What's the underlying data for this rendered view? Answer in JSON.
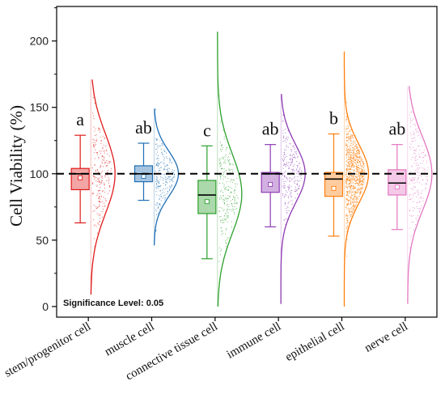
{
  "chart_data": {
    "type": "box-violin",
    "ylabel": "Cell Viability (%)",
    "ylim": [
      -8,
      226
    ],
    "yticks": [
      0,
      50,
      100,
      150,
      200
    ],
    "reference_line": 100,
    "annotation": "Significance Level: 0.05",
    "categories": [
      {
        "label": "stem/progenitor cell",
        "color": "#e01b1b",
        "letter": "a",
        "whisker_low": 63,
        "q1": 88,
        "median": 100,
        "mean": 97,
        "q3": 104,
        "whisker_high": 129,
        "data_min": 9,
        "data_max": 171,
        "density_peak": 100,
        "density_sd": 30
      },
      {
        "label": "muscle cell",
        "color": "#1f6fb5",
        "letter": "ab",
        "whisker_low": 80,
        "q1": 94,
        "median": 100,
        "mean": 98,
        "q3": 106,
        "whisker_high": 123,
        "data_min": 46,
        "data_max": 149,
        "density_peak": 100,
        "density_sd": 17
      },
      {
        "label": "connective tissue cell",
        "color": "#2ca02c",
        "letter": "c",
        "whisker_low": 36,
        "q1": 70,
        "median": 84,
        "mean": 79,
        "q3": 95,
        "whisker_high": 121,
        "data_min": 0,
        "data_max": 207,
        "density_peak": 85,
        "density_sd": 30
      },
      {
        "label": "immune cell",
        "color": "#8e3bb4",
        "letter": "ab",
        "whisker_low": 60,
        "q1": 86,
        "median": 100,
        "mean": 92,
        "q3": 101,
        "whisker_high": 122,
        "data_min": 2,
        "data_max": 160,
        "density_peak": 100,
        "density_sd": 22
      },
      {
        "label": "epithelial cell",
        "color": "#ff7f0e",
        "letter": "b",
        "whisker_low": 53,
        "q1": 83,
        "median": 96,
        "mean": 89,
        "q3": 101,
        "whisker_high": 130,
        "data_min": 0,
        "data_max": 192,
        "density_peak": 100,
        "density_sd": 22
      },
      {
        "label": "nerve cell",
        "color": "#e377c2",
        "letter": "ab",
        "whisker_low": 58,
        "q1": 84,
        "median": 93,
        "mean": 90,
        "q3": 103,
        "whisker_high": 122,
        "data_min": 2,
        "data_max": 166,
        "density_peak": 100,
        "density_sd": 28
      }
    ]
  }
}
